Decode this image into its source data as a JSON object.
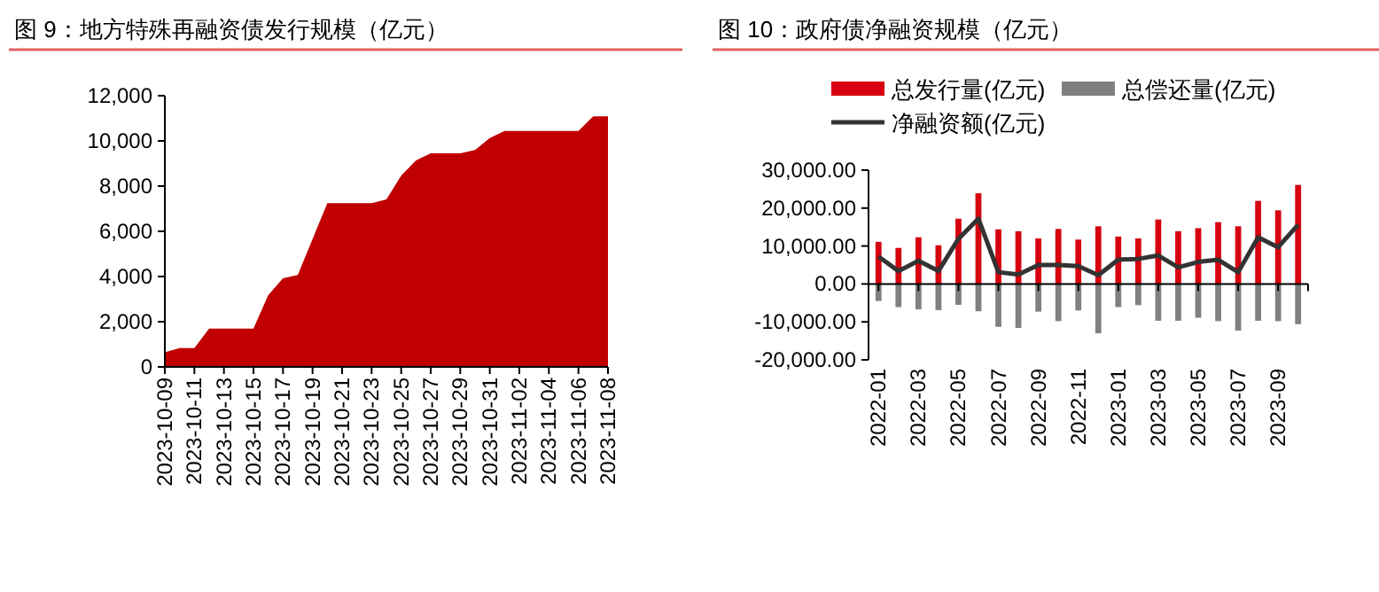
{
  "chart_data": [
    {
      "type": "area",
      "title": "图 9：地方特殊再融资债发行规模（亿元）",
      "categories": [
        "2023-10-09",
        null,
        "2023-10-11",
        null,
        "2023-10-13",
        null,
        "2023-10-15",
        null,
        "2023-10-17",
        null,
        "2023-10-19",
        null,
        "2023-10-21",
        null,
        "2023-10-23",
        null,
        "2023-10-25",
        null,
        "2023-10-27",
        null,
        "2023-10-29",
        null,
        "2023-10-31",
        null,
        "2023-11-02",
        null,
        "2023-11-04",
        null,
        "2023-11-06",
        null,
        "2023-11-08"
      ],
      "values": [
        650,
        830,
        830,
        1700,
        1700,
        1700,
        1700,
        3180,
        3920,
        4070,
        5660,
        7250,
        7250,
        7250,
        7250,
        7410,
        8460,
        9140,
        9450,
        9450,
        9450,
        9600,
        10130,
        10440,
        10440,
        10440,
        10440,
        10440,
        10440,
        11090,
        11090
      ],
      "color": "#c00000",
      "ylim": [
        0,
        12000
      ],
      "yticks": [
        0,
        {
          "value": 2000,
          "label": "2,000"
        },
        {
          "value": 4000,
          "label": "4,000"
        },
        {
          "value": 6000,
          "label": "6,000"
        },
        {
          "value": 8000,
          "label": "8,000"
        },
        {
          "value": 10000,
          "label": "10,000"
        },
        {
          "value": 12000,
          "label": "12,000"
        }
      ]
    },
    {
      "type": "bar",
      "title": "图 10：政府债净融资规模（亿元）",
      "categories": [
        "2022-01",
        null,
        "2022-03",
        null,
        "2022-05",
        null,
        "2022-07",
        null,
        "2022-09",
        null,
        "2022-11",
        null,
        "2023-01",
        null,
        "2023-03",
        null,
        "2023-05",
        null,
        "2023-07",
        null,
        "2023-09",
        null
      ],
      "stacked": true,
      "series": [
        {
          "name": "总发行量(亿元)",
          "color": "#d7000f",
          "values": [
            11100,
            9500,
            12300,
            10200,
            17200,
            23900,
            14400,
            13900,
            12000,
            14500,
            11700,
            15200,
            12500,
            12000,
            17000,
            13900,
            14700,
            16300,
            15200,
            21900,
            19400,
            26100
          ]
        },
        {
          "name": "总偿还量(亿元)",
          "color": "#808080",
          "values": [
            -4500,
            -6100,
            -6700,
            -6900,
            -5500,
            -7200,
            -11300,
            -11600,
            -7300,
            -9800,
            -7000,
            -13000,
            -6100,
            -5600,
            -9700,
            -9700,
            -8900,
            -9800,
            -12300,
            -9700,
            -9800,
            -10600
          ]
        },
        {
          "name": "净融资额(亿元)",
          "type": "line",
          "color": "#333333",
          "values": [
            7200,
            3400,
            6100,
            3400,
            11900,
            17200,
            3100,
            2500,
            5000,
            5000,
            4700,
            2300,
            6400,
            6600,
            7500,
            4400,
            5800,
            6400,
            3100,
            12300,
            9700,
            15600
          ]
        }
      ],
      "legend": "top",
      "ylim": [
        -20000,
        30000
      ],
      "yticks": [
        {
          "value": -20000,
          "label": "-20,000.00"
        },
        {
          "value": -10000,
          "label": "-10,000.00"
        },
        {
          "value": 0,
          "label": "0.00"
        },
        {
          "value": 10000,
          "label": "10,000.00"
        },
        {
          "value": 20000,
          "label": "20,000.00"
        },
        {
          "value": 30000,
          "label": "30,000.00"
        }
      ]
    }
  ]
}
